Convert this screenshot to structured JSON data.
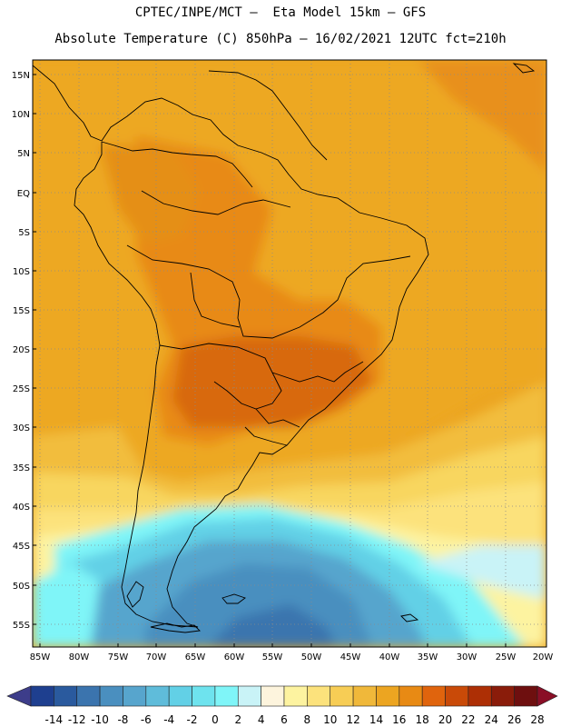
{
  "title_line1": "CPTEC/INPE/MCT –  Eta Model 15km – GFS",
  "title_line2": "Absolute Temperature (C) 850hPa – 16/02/2021 12UTC fct=210h",
  "lat_labels": [
    "15N",
    "10N",
    "5N",
    "EQ",
    "5S",
    "10S",
    "15S",
    "20S",
    "25S",
    "30S",
    "35S",
    "40S",
    "45S",
    "50S",
    "55S"
  ],
  "lon_labels": [
    "85W",
    "80W",
    "75W",
    "70W",
    "65W",
    "60W",
    "55W",
    "50W",
    "45W",
    "40W",
    "35W",
    "30W",
    "25W",
    "20W"
  ],
  "colorbar": {
    "labels": [
      "-14",
      "-12",
      "-10",
      "-8",
      "-6",
      "-4",
      "-2",
      "0",
      "2",
      "4",
      "6",
      "8",
      "10",
      "12",
      "14",
      "16",
      "18",
      "20",
      "22",
      "24",
      "26",
      "28"
    ],
    "colors": [
      "#1e3f8f",
      "#2a5a9e",
      "#3b74ae",
      "#4a8fbf",
      "#57a5cd",
      "#5fbcda",
      "#62d0e6",
      "#6ee3ee",
      "#7ff5f8",
      "#c9f3f7",
      "#fdf4dd",
      "#fdf3a0",
      "#fce27c",
      "#f7cd55",
      "#f0b83a",
      "#eca521",
      "#e88a14",
      "#e0640d",
      "#c94a08",
      "#ad2f05",
      "#8a1c0a",
      "#6e0f0f",
      "#8a0e26"
    ],
    "min_color": "#3d3d8a",
    "max_color": "#8a0e26"
  }
}
